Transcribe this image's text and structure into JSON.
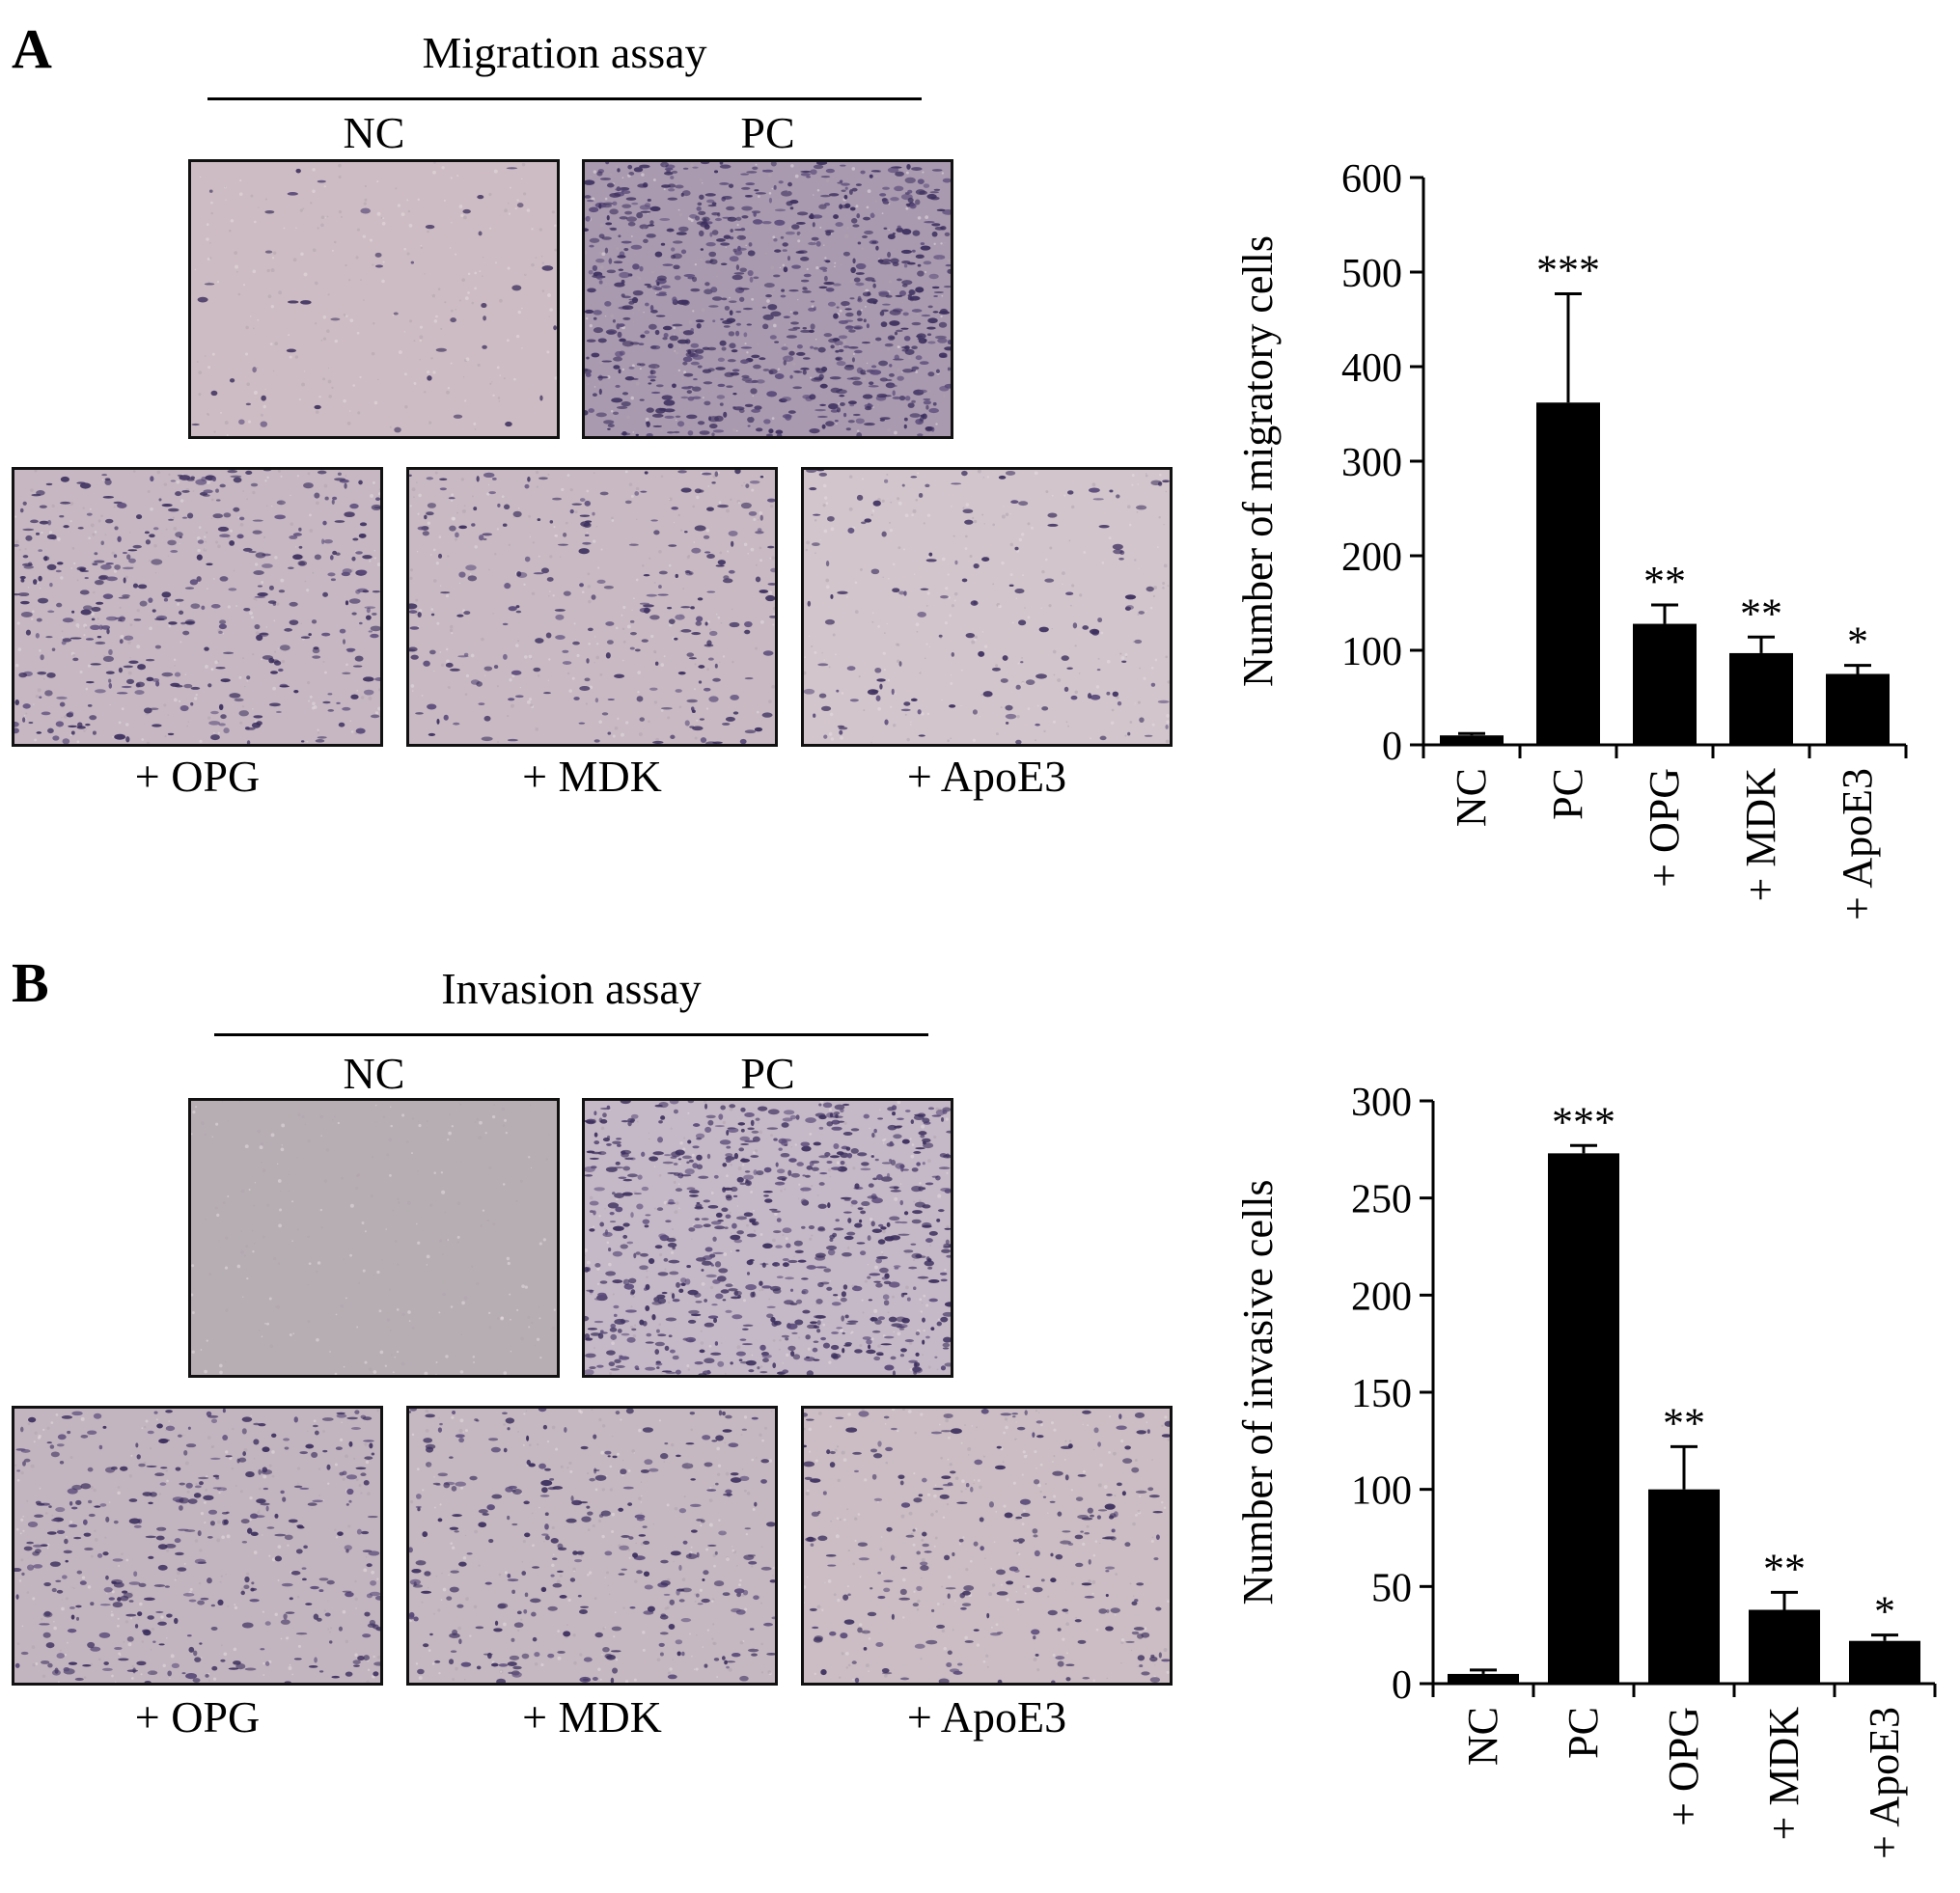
{
  "panels": [
    {
      "letter": "A",
      "assay_title": "Migration assay",
      "image_labels": {
        "nc": "NC",
        "pc": "PC",
        "opg": "+ OPG",
        "mdk": "+ MDK",
        "apoe3": "+ ApoE3"
      },
      "micrographs": {
        "nc": {
          "background": "#cdbcc3",
          "density": 0.05
        },
        "pc": {
          "background": "#a99aaf",
          "density": 0.95
        },
        "opg": {
          "background": "#c6b7c2",
          "density": 0.45
        },
        "mdk": {
          "background": "#c8b9c3",
          "density": 0.28
        },
        "apoe3": {
          "background": "#d2c5cc",
          "density": 0.16
        }
      }
    },
    {
      "letter": "B",
      "assay_title": "Invasion assay",
      "image_labels": {
        "nc": "NC",
        "pc": "PC",
        "opg": "+ OPG",
        "mdk": "+ MDK",
        "apoe3": "+ ApoE3"
      },
      "micrographs": {
        "nc": {
          "background": "#b7aeb3",
          "density": 0.0
        },
        "pc": {
          "background": "#c6b9c7",
          "density": 0.85
        },
        "opg": {
          "background": "#c3b5bf",
          "density": 0.42
        },
        "mdk": {
          "background": "#c5b8c1",
          "density": 0.34
        },
        "apoe3": {
          "background": "#cbbdc3",
          "density": 0.28
        }
      }
    }
  ],
  "chart_data": [
    {
      "type": "bar",
      "title": "",
      "xlabel": "",
      "ylabel": "Number of migratory cells",
      "categories": [
        "NC",
        "PC",
        "+ OPG",
        "+ MDK",
        "+ ApoE3"
      ],
      "values": [
        10,
        362,
        128,
        97,
        75
      ],
      "errors": [
        2,
        115,
        20,
        17,
        9
      ],
      "significance": [
        "",
        "***",
        "**",
        "**",
        "*"
      ],
      "ylim": [
        0,
        600
      ],
      "yticks": [
        0,
        100,
        200,
        300,
        400,
        500,
        600
      ],
      "bar_color": "#000000",
      "grid": false
    },
    {
      "type": "bar",
      "title": "",
      "xlabel": "",
      "ylabel": "Number of invasive cells",
      "categories": [
        "NC",
        "PC",
        "+ OPG",
        "+ MDK",
        "+ ApoE3"
      ],
      "values": [
        5,
        273,
        100,
        38,
        22
      ],
      "errors": [
        2,
        4,
        22,
        9,
        3
      ],
      "significance": [
        "",
        "***",
        "**",
        "**",
        "*"
      ],
      "ylim": [
        0,
        300
      ],
      "yticks": [
        0,
        50,
        100,
        150,
        200,
        250,
        300
      ],
      "bar_color": "#000000",
      "grid": false
    }
  ]
}
